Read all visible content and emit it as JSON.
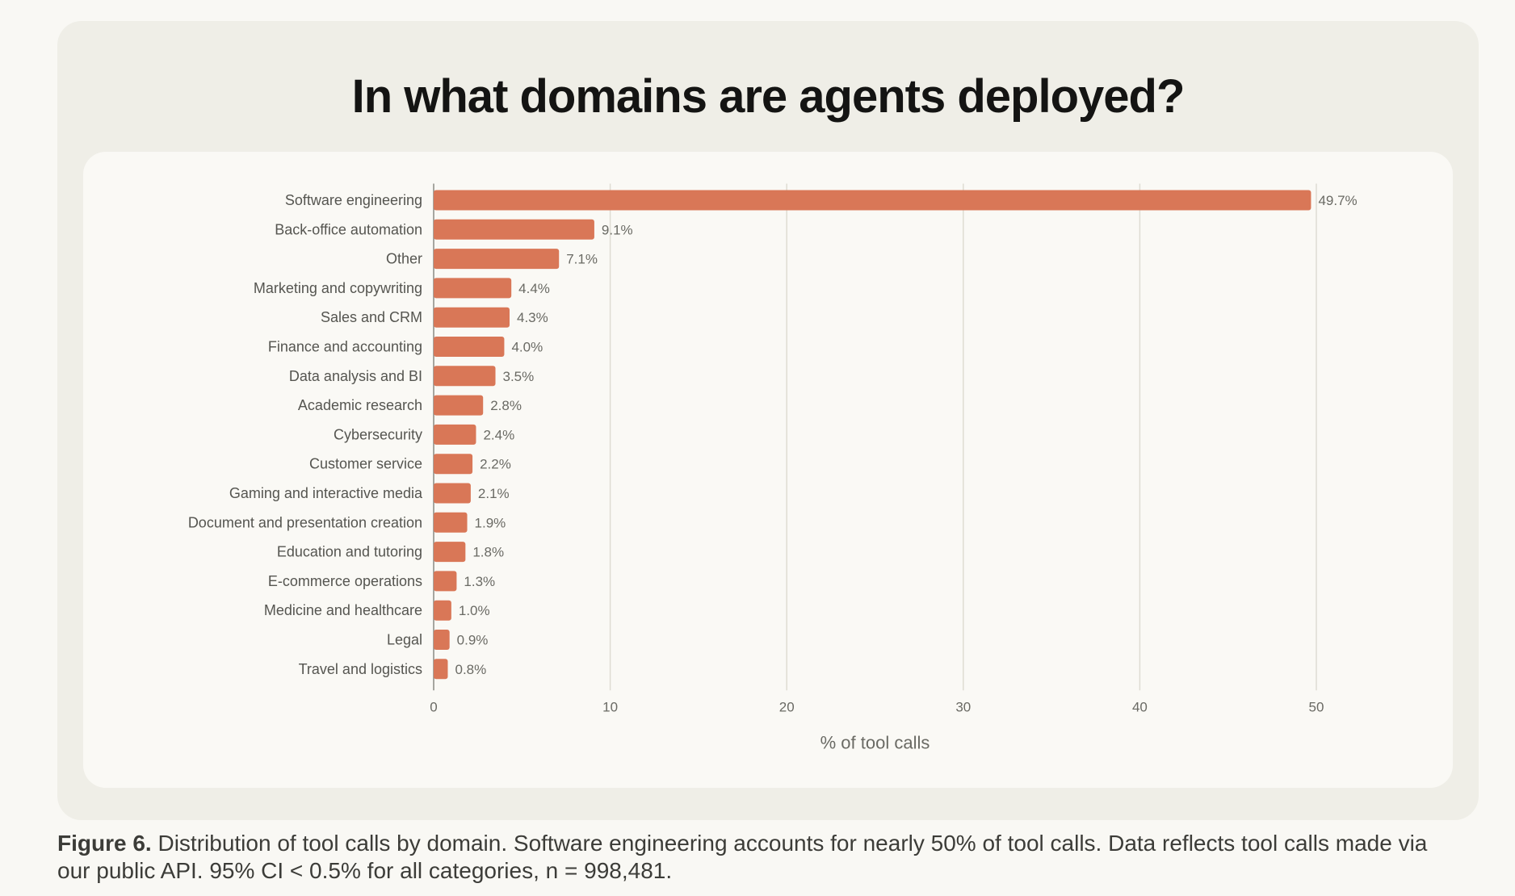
{
  "title": "In what domains are agents deployed?",
  "caption": {
    "label": "Figure 6.",
    "text": " Distribution of tool calls by domain. Software engineering accounts for nearly 50% of tool calls. Data reflects tool calls made via our public API. 95% CI < 0.5% for all categories, n = 998,481."
  },
  "colors": {
    "bar": "#d97757",
    "grid": "#dedcd3",
    "axis": "#8a8a84"
  },
  "chart_data": {
    "type": "bar",
    "orientation": "horizontal",
    "title": "In what domains are agents deployed?",
    "xlabel": "% of tool calls",
    "ylabel": "",
    "xlim": [
      0,
      50
    ],
    "xticks": [
      0,
      10,
      20,
      30,
      40,
      50
    ],
    "grid": true,
    "categories": [
      "Software engineering",
      "Back-office automation",
      "Other",
      "Marketing and copywriting",
      "Sales and CRM",
      "Finance and accounting",
      "Data analysis and BI",
      "Academic research",
      "Cybersecurity",
      "Customer service",
      "Gaming and interactive media",
      "Document and presentation creation",
      "Education and tutoring",
      "E-commerce operations",
      "Medicine and healthcare",
      "Legal",
      "Travel and logistics"
    ],
    "values": [
      49.7,
      9.1,
      7.1,
      4.4,
      4.3,
      4.0,
      3.5,
      2.8,
      2.4,
      2.2,
      2.1,
      1.9,
      1.8,
      1.3,
      1.0,
      0.9,
      0.8
    ],
    "value_labels": [
      "49.7%",
      "9.1%",
      "7.1%",
      "4.4%",
      "4.3%",
      "4.0%",
      "3.5%",
      "2.8%",
      "2.4%",
      "2.2%",
      "2.1%",
      "1.9%",
      "1.8%",
      "1.3%",
      "1.0%",
      "0.9%",
      "0.8%"
    ]
  }
}
